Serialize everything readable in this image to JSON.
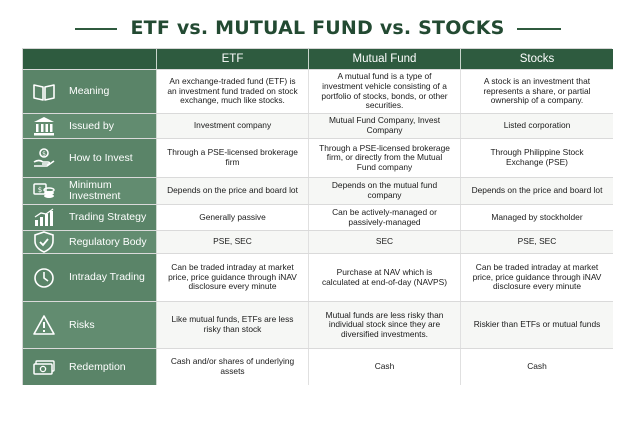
{
  "title": "ETF vs. MUTUAL FUND vs. STOCKS",
  "columns": [
    "ETF",
    "Mutual Fund",
    "Stocks"
  ],
  "rows": [
    {
      "icon": "book-icon",
      "label": "Meaning",
      "cells": [
        "An exchange-traded fund (ETF) is an investment fund traded on stock exchange, much like stocks.",
        "A mutual fund is a type of investment vehicle consisting of a portfolio of stocks, bonds, or other securities.",
        "A stock is an investment that represents a share, or partial ownership of a company."
      ]
    },
    {
      "icon": "bank-building-icon",
      "label": "Issued by",
      "cells": [
        "Investment company",
        "Mutual Fund Company, Invest Company",
        "Listed corporation"
      ]
    },
    {
      "icon": "hand-money-icon",
      "label": "How to Invest",
      "cells": [
        "Through a PSE-licensed brokerage firm",
        "Through a PSE-licensed brokerage firm, or directly from the Mutual Fund company",
        "Through Philippine Stock Exchange (PSE)"
      ]
    },
    {
      "icon": "coins-icon",
      "label": "Minimum Investment",
      "cells": [
        "Depends on the price and board lot",
        "Depends on the mutual fund company",
        "Depends on the price and board lot"
      ]
    },
    {
      "icon": "bar-chart-icon",
      "label": "Trading Strategy",
      "cells": [
        "Generally passive",
        "Can be actively-managed or passively-managed",
        "Managed by stockholder"
      ]
    },
    {
      "icon": "shield-check-icon",
      "label": "Regulatory Body",
      "cells": [
        "PSE, SEC",
        "SEC",
        "PSE, SEC"
      ]
    },
    {
      "icon": "clock-icon",
      "label": "Intraday Trading",
      "cells": [
        "Can be traded intraday at market price, price guidance through iNAV disclosure every minute",
        "Purchase at NAV which is calculated at end-of-day (NAVPS)",
        "Can be traded intraday at market price, price guidance through iNAV disclosure every minute"
      ]
    },
    {
      "icon": "warning-icon",
      "label": "Risks",
      "cells": [
        "Like mutual funds, ETFs are less risky than stock",
        "Mutual funds are less risky than individual stock since they are diversified investments.",
        "Riskier than ETFs or mutual funds"
      ]
    },
    {
      "icon": "cash-icon",
      "label": "Redemption",
      "cells": [
        "Cash and/or shares of underlying assets",
        "Cash",
        "Cash"
      ]
    }
  ]
}
